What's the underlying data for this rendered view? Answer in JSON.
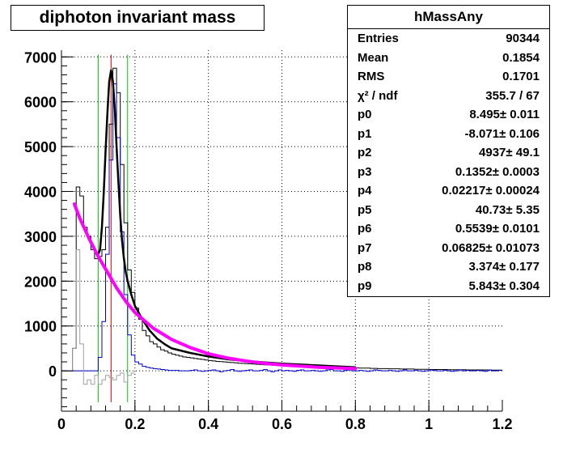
{
  "chart_data": {
    "type": "histogram",
    "title": "diphoton invariant mass",
    "xlabel": "",
    "ylabel": "",
    "xlim": [
      0,
      1.2
    ],
    "ylim": [
      -900,
      7150
    ],
    "x_ticks": [
      "0",
      "0.2",
      "0.4",
      "0.6",
      "0.8",
      "1",
      "1.2"
    ],
    "y_ticks": [
      "0",
      "1000",
      "2000",
      "3000",
      "4000",
      "5000",
      "6000",
      "7000"
    ],
    "grid": true,
    "legend": "none",
    "stats_box": {
      "name": "hMassAny",
      "placement": "top-right",
      "rows": [
        {
          "label": "Entries",
          "value": "90344"
        },
        {
          "label": "Mean",
          "value": "0.1854"
        },
        {
          "label": "RMS",
          "value": "0.1701"
        },
        {
          "label": "χ² / ndf",
          "value": "355.7 / 67"
        },
        {
          "label": "p0",
          "value": "8.495± 0.011"
        },
        {
          "label": "p1",
          "value": "-8.071± 0.106"
        },
        {
          "label": "p2",
          "value": "4937± 49.1"
        },
        {
          "label": "p3",
          "value": "0.1352± 0.0003"
        },
        {
          "label": "p4",
          "value": "0.02217± 0.00024"
        },
        {
          "label": "p5",
          "value": "40.73± 5.35"
        },
        {
          "label": "p6",
          "value": "0.5539± 0.0101"
        },
        {
          "label": "p7",
          "value": "0.06825± 0.01073"
        },
        {
          "label": "p8",
          "value": "3.374± 0.177"
        },
        {
          "label": "p9",
          "value": "5.843± 0.304"
        }
      ]
    },
    "vertical_lines": [
      {
        "x": 0.1,
        "color": "#00cc00"
      },
      {
        "x": 0.135,
        "color": "#cc0000"
      },
      {
        "x": 0.18,
        "color": "#00cc00"
      }
    ],
    "colors": {
      "data": "#000000",
      "signal": "#0000cc",
      "residual": "#a0a0a0",
      "total_fit": "#000000",
      "background_fit": "#ff00ff",
      "grid": "#000000"
    },
    "series": [
      {
        "id": "data",
        "style": "step",
        "x_start": 0,
        "bin_width": 0.01,
        "values": [
          0,
          0,
          0,
          500,
          4100,
          3900,
          3200,
          3000,
          2700,
          2500,
          2550,
          2700,
          3200,
          5500,
          6750,
          6200,
          4600,
          3300,
          2250,
          1750,
          1400,
          1150,
          900,
          780,
          650,
          600,
          530,
          470,
          440,
          400,
          370,
          350,
          330,
          310,
          300,
          290,
          275,
          265,
          255,
          240,
          230,
          220,
          210,
          205,
          200,
          190,
          185,
          180,
          170,
          165,
          160,
          155,
          150,
          145,
          140,
          135,
          130,
          125,
          120,
          120,
          115,
          115,
          110,
          110,
          105,
          100,
          100,
          95,
          90,
          90,
          85,
          85,
          80,
          80,
          80,
          75,
          75,
          70,
          70,
          70,
          65,
          60,
          60,
          60,
          55,
          55,
          50,
          50,
          50,
          45,
          45,
          45,
          40,
          40,
          40,
          40,
          35,
          35,
          35,
          35,
          30,
          30,
          30,
          30,
          30,
          25,
          25,
          25,
          25,
          25,
          20,
          20,
          20,
          20,
          20,
          20,
          15,
          15,
          15,
          15
        ]
      },
      {
        "id": "signal",
        "style": "step",
        "x_start": 0,
        "bin_width": 0.01,
        "values": [
          0,
          0,
          0,
          0,
          0,
          0,
          0,
          0,
          0,
          0,
          300,
          1100,
          2600,
          4700,
          6400,
          5200,
          3100,
          1700,
          800,
          350,
          200,
          150,
          100,
          80,
          60,
          50,
          40,
          30,
          20,
          10,
          10,
          10,
          0,
          0,
          0,
          10,
          20,
          0,
          -10,
          0,
          10,
          20,
          0,
          -20,
          0,
          10,
          30,
          0,
          -10,
          0,
          10,
          20,
          0,
          0,
          10,
          30,
          0,
          -20,
          0,
          20,
          0,
          10,
          0,
          -10,
          10,
          20,
          0,
          0,
          10,
          0,
          -10,
          0,
          20,
          30,
          0,
          0,
          -10,
          10,
          20,
          0,
          0,
          10,
          0,
          -10,
          0,
          20,
          10,
          0,
          0,
          10,
          0,
          -10,
          0,
          20,
          0,
          0,
          10,
          0,
          -10,
          0,
          20,
          10,
          0,
          0,
          10,
          0,
          -10,
          0,
          20,
          0,
          10,
          0,
          0,
          10,
          0,
          -10,
          20,
          0,
          0,
          10
        ]
      },
      {
        "id": "residual",
        "style": "step",
        "x_start": 0,
        "bin_width": 0.01,
        "values": [
          0,
          0,
          0,
          500,
          2700,
          600,
          -300,
          -200,
          -300,
          -100,
          -300,
          -200,
          -100,
          -150,
          -200,
          -100,
          -50,
          -250,
          -100,
          -50
        ]
      },
      {
        "id": "total_fit",
        "style": "curve",
        "x": [
          0.1,
          0.105,
          0.11,
          0.115,
          0.12,
          0.125,
          0.13,
          0.135,
          0.14,
          0.145,
          0.15,
          0.155,
          0.16,
          0.165,
          0.17,
          0.175,
          0.18,
          0.19,
          0.2,
          0.21,
          0.22,
          0.24,
          0.26,
          0.28,
          0.3,
          0.35,
          0.4,
          0.45,
          0.5,
          0.55,
          0.6,
          0.7,
          0.8
        ],
        "y": [
          2600,
          2700,
          3200,
          3950,
          4900,
          5750,
          6450,
          6700,
          6450,
          5850,
          5000,
          4200,
          3450,
          2900,
          2500,
          2200,
          2000,
          1700,
          1450,
          1300,
          1150,
          900,
          720,
          600,
          500,
          400,
          320,
          260,
          220,
          190,
          160,
          120,
          80
        ]
      },
      {
        "id": "background_fit",
        "style": "curve",
        "x": [
          0.035,
          0.05,
          0.075,
          0.1,
          0.125,
          0.15,
          0.175,
          0.2,
          0.25,
          0.3,
          0.35,
          0.4,
          0.45,
          0.5,
          0.55,
          0.6,
          0.7,
          0.8
        ],
        "y": [
          3720,
          3400,
          2950,
          2550,
          2200,
          1850,
          1550,
          1300,
          950,
          700,
          520,
          380,
          290,
          220,
          170,
          130,
          80,
          50
        ]
      }
    ]
  }
}
